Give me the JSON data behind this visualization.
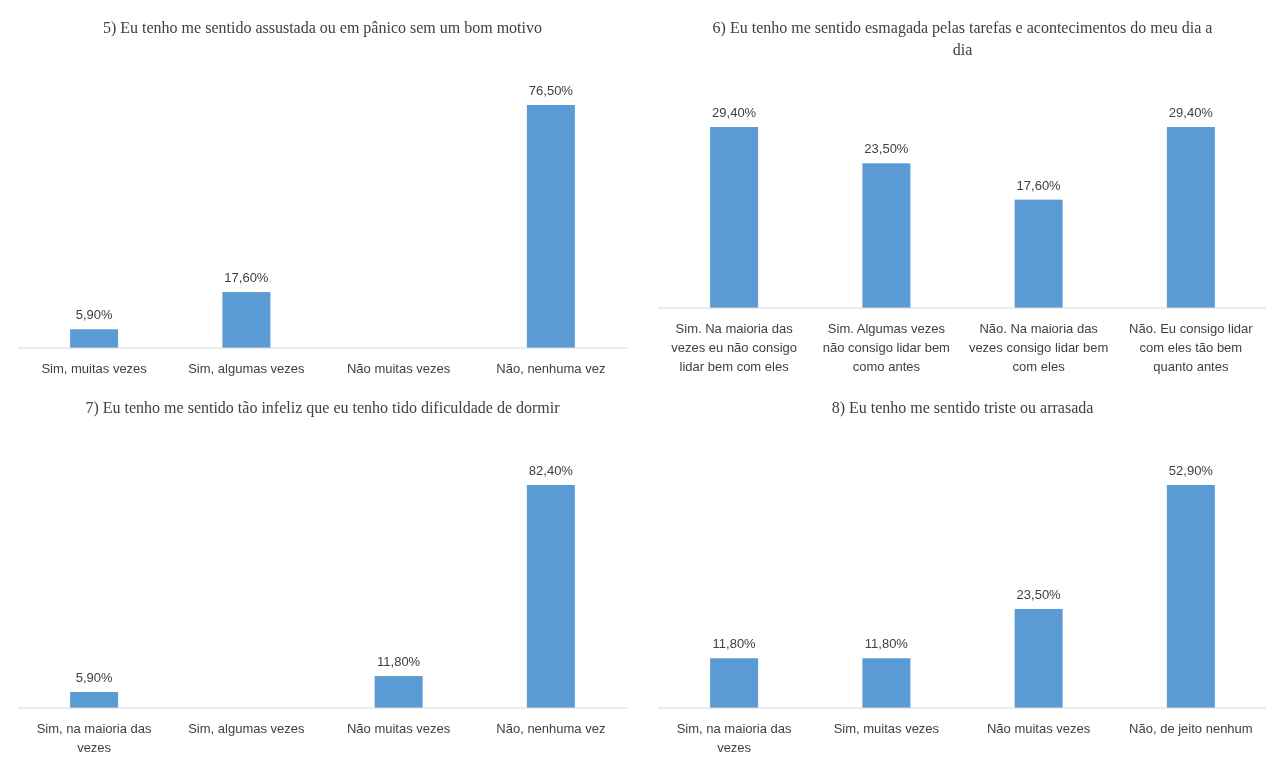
{
  "chart_data": [
    {
      "type": "bar",
      "title": "5) Eu tenho me sentido assustada ou em pânico sem um bom motivo",
      "categories": [
        "Sim, muitas vezes",
        "Sim, algumas vezes",
        "Não muitas vezes",
        "Não, nenhuma vez"
      ],
      "values": [
        5.9,
        17.6,
        0,
        76.5
      ],
      "value_labels": [
        "5,90%",
        "17,60%",
        null,
        "76,50%"
      ],
      "color": "#5b9bd5"
    },
    {
      "type": "bar",
      "title": "6) Eu tenho me sentido esmagada pelas tarefas e acontecimentos do meu dia a dia",
      "categories": [
        "Sim. Na maioria das vezes eu não consigo lidar bem com eles",
        "Sim. Algumas vezes não consigo lidar bem como antes",
        "Não. Na maioria das vezes consigo lidar bem com eles",
        "Não. Eu consigo lidar com eles tão bem quanto antes"
      ],
      "values": [
        29.4,
        23.5,
        17.6,
        29.4
      ],
      "value_labels": [
        "29,40%",
        "23,50%",
        "17,60%",
        "29,40%"
      ],
      "color": "#5b9bd5"
    },
    {
      "type": "bar",
      "title": "7) Eu tenho me sentido tão infeliz que eu tenho tido dificuldade de dormir",
      "categories": [
        "Sim, na maioria das vezes",
        "Sim, algumas vezes",
        "Não muitas vezes",
        "Não, nenhuma vez"
      ],
      "values": [
        5.9,
        0,
        11.8,
        82.4
      ],
      "value_labels": [
        "5,90%",
        null,
        "11,80%",
        "82,40%"
      ],
      "color": "#5b9bd5"
    },
    {
      "type": "bar",
      "title": "8) Eu tenho me sentido triste ou arrasada",
      "categories": [
        "Sim, na maioria das vezes",
        "Sim, muitas vezes",
        "Não muitas vezes",
        "Não, de jeito nenhum"
      ],
      "values": [
        11.8,
        11.8,
        23.5,
        52.9
      ],
      "value_labels": [
        "11,80%",
        "11,80%",
        "23,50%",
        "52,90%"
      ],
      "color": "#5b9bd5"
    }
  ]
}
